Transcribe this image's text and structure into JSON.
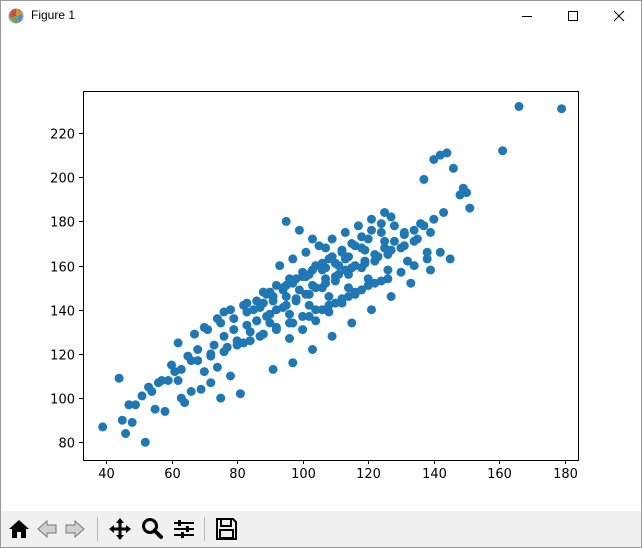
{
  "window": {
    "title": "Figure 1",
    "icon": "matplotlib-icon",
    "controls": [
      "minimize-icon",
      "maximize-icon",
      "close-icon"
    ]
  },
  "toolbar": {
    "buttons": [
      "home-icon",
      "back-icon",
      "forward-icon",
      "pan-icon",
      "zoom-icon",
      "configure-subplots-icon",
      "save-icon"
    ]
  },
  "colors": {
    "marker": "#1f77b4",
    "axes": "#000000",
    "toolbar_bg": "#f0f0f0"
  },
  "chart_data": {
    "type": "scatter",
    "title": "",
    "xlabel": "",
    "ylabel": "",
    "xlim": [
      33,
      184
    ],
    "ylim": [
      72,
      239
    ],
    "grid": false,
    "xticks": [
      40,
      60,
      80,
      100,
      120,
      140,
      160,
      180
    ],
    "yticks": [
      80,
      100,
      120,
      140,
      160,
      180,
      200,
      220
    ],
    "x": [
      39,
      45,
      46,
      48,
      52,
      44,
      49,
      55,
      58,
      53,
      56,
      64,
      63,
      66,
      47,
      51,
      54,
      59,
      61,
      69,
      72,
      75,
      78,
      81,
      74,
      70,
      66,
      62,
      179,
      166,
      161,
      151,
      150,
      148,
      149,
      146,
      144,
      142,
      140,
      137,
      60,
      65,
      68,
      73,
      76,
      79,
      83,
      86,
      89,
      92,
      95,
      98,
      101,
      104,
      107,
      110,
      113,
      116,
      119,
      122,
      125,
      128,
      131,
      134,
      137,
      140,
      143,
      62,
      67,
      71,
      75,
      79,
      83,
      87,
      91,
      95,
      99,
      103,
      107,
      111,
      115,
      119,
      123,
      127,
      131,
      135,
      139,
      57,
      63,
      68,
      72,
      77,
      82,
      87,
      92,
      97,
      102,
      106,
      110,
      114,
      118,
      122,
      126,
      130,
      134,
      138,
      142,
      85,
      88,
      91,
      94,
      97,
      100,
      103,
      106,
      109,
      112,
      115,
      118,
      121,
      124,
      127,
      86,
      90,
      94,
      98,
      102,
      106,
      110,
      114,
      118,
      122,
      126,
      130,
      134,
      88,
      92,
      96,
      100,
      104,
      108,
      112,
      116,
      120,
      124,
      128,
      80,
      84,
      90,
      96,
      102,
      108,
      114,
      120,
      126,
      132,
      138,
      76,
      83,
      89,
      95,
      101,
      107,
      113,
      119,
      125,
      131,
      136,
      93,
      97,
      101,
      105,
      109,
      113,
      117,
      121,
      125,
      96,
      100,
      104,
      108,
      112,
      116,
      120,
      70,
      74,
      78,
      82,
      86,
      90,
      94,
      98,
      102,
      106,
      110,
      114,
      118,
      72,
      76,
      80,
      84,
      88,
      92,
      96,
      100,
      104,
      108,
      112,
      116,
      120,
      124,
      95,
      99,
      103,
      107,
      111,
      91,
      97,
      103,
      109,
      115,
      121,
      127,
      133,
      139,
      145
    ],
    "y": [
      87,
      90,
      84,
      89,
      80,
      109,
      97,
      95,
      94,
      105,
      107,
      98,
      100,
      103,
      97,
      101,
      103,
      108,
      112,
      104,
      107,
      100,
      110,
      102,
      114,
      112,
      117,
      108,
      231,
      232,
      212,
      186,
      193,
      192,
      195,
      204,
      211,
      210,
      208,
      199,
      115,
      119,
      122,
      124,
      128,
      131,
      133,
      135,
      137,
      140,
      142,
      145,
      147,
      150,
      152,
      155,
      158,
      160,
      162,
      165,
      168,
      171,
      174,
      176,
      178,
      181,
      184,
      125,
      129,
      131,
      134,
      136,
      139,
      141,
      144,
      146,
      149,
      151,
      154,
      156,
      159,
      161,
      164,
      167,
      169,
      172,
      175,
      108,
      113,
      117,
      120,
      123,
      125,
      128,
      131,
      134,
      137,
      140,
      143,
      146,
      149,
      152,
      154,
      157,
      160,
      163,
      166,
      140,
      143,
      146,
      149,
      152,
      155,
      158,
      161,
      164,
      167,
      170,
      173,
      176,
      179,
      182,
      135,
      138,
      141,
      144,
      147,
      150,
      153,
      156,
      159,
      162,
      165,
      168,
      171,
      148,
      151,
      154,
      157,
      160,
      163,
      166,
      169,
      172,
      175,
      178,
      126,
      130,
      134,
      138,
      142,
      146,
      150,
      154,
      158,
      162,
      166,
      139,
      143,
      147,
      151,
      155,
      159,
      163,
      167,
      171,
      175,
      179,
      160,
      163,
      166,
      169,
      172,
      175,
      178,
      181,
      184,
      127,
      131,
      135,
      139,
      143,
      147,
      151,
      132,
      136,
      140,
      142,
      144,
      148,
      150,
      154,
      156,
      158,
      161,
      164,
      168,
      119,
      121,
      124,
      126,
      129,
      132,
      134,
      137,
      140,
      142,
      145,
      148,
      151,
      153,
      180,
      176,
      172,
      168,
      160,
      113,
      116,
      122,
      128,
      134,
      140,
      146,
      152,
      158,
      163
    ]
  }
}
